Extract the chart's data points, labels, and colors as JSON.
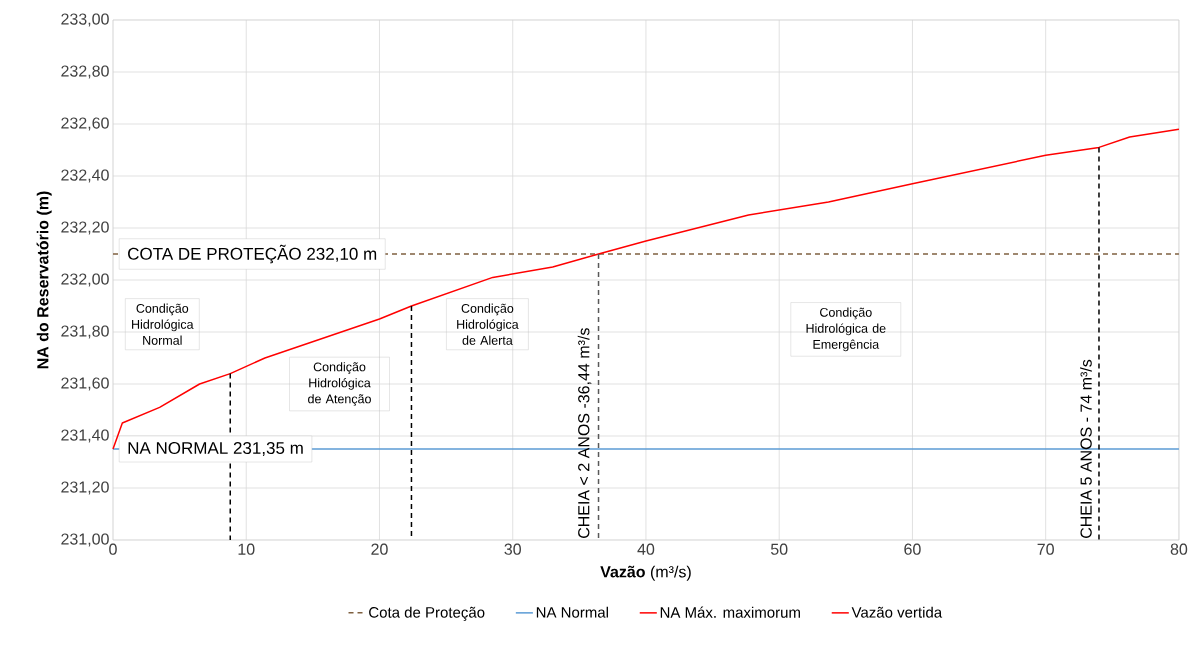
{
  "chart_data": {
    "type": "line",
    "xlabel": "**Vazão** (m³/s)",
    "ylabel": "NA do Reservatório (m)",
    "xlim": [
      0,
      80
    ],
    "xticks": [
      0,
      10,
      20,
      30,
      40,
      50,
      60,
      70,
      80
    ],
    "ylim": [
      231.0,
      233.0
    ],
    "yticks": [
      {
        "value": 231.0,
        "label": "231,00"
      },
      {
        "value": 231.2,
        "label": "231,20"
      },
      {
        "value": 231.4,
        "label": "231,40"
      },
      {
        "value": 231.6,
        "label": "231,60"
      },
      {
        "value": 231.8,
        "label": "231,80"
      },
      {
        "value": 232.0,
        "label": "232,00"
      },
      {
        "value": 232.2,
        "label": "232,20"
      },
      {
        "value": 232.4,
        "label": "232,40"
      },
      {
        "value": 232.6,
        "label": "232,60"
      },
      {
        "value": 232.8,
        "label": "232,80"
      },
      {
        "value": 233.0,
        "label": "233,00"
      }
    ],
    "grid": true,
    "legend": "bottom",
    "marker": "none",
    "series": [
      {
        "name": "Cota de Proteção",
        "color": "#7f6040",
        "line_style": "dashed",
        "x": [
          0,
          80
        ],
        "values": [
          232.1,
          232.1
        ]
      },
      {
        "name": "NA Normal",
        "color": "#5b9bd5",
        "x": [
          0,
          80
        ],
        "values": [
          231.35,
          231.35
        ]
      },
      {
        "name": "NA Máx. maximorum",
        "color": "#ff0000",
        "values": [
          null
        ]
      },
      {
        "name": "Vazão vertida",
        "color": "#ff0000",
        "x": [
          0,
          0.7,
          3.5,
          6.5,
          8.8,
          11.4,
          20,
          22.4,
          28.5,
          33,
          36.44,
          40,
          47.7,
          53.7,
          60,
          70,
          74,
          76.3,
          80
        ],
        "values": [
          231.35,
          231.45,
          231.51,
          231.6,
          231.64,
          231.7,
          231.85,
          231.9,
          232.01,
          232.05,
          232.1,
          232.15,
          232.25,
          232.3,
          232.37,
          232.48,
          232.51,
          232.55,
          232.58
        ]
      },
      {
        "color": "#000000",
        "line_style": "dashed",
        "x": [
          8.8,
          8.8
        ],
        "values": [
          231.64,
          231.0
        ]
      },
      {
        "color": "#000000",
        "line_style": "dashed",
        "x": [
          22.4,
          22.4
        ],
        "values": [
          231.9,
          231.0
        ]
      },
      {
        "color": "#595959",
        "line_style": "dashed",
        "x": [
          36.44,
          36.44
        ],
        "values": [
          232.1,
          231.0
        ]
      },
      {
        "color": "#000000",
        "line_style": "dashed",
        "x": [
          74,
          74
        ],
        "values": [
          232.51,
          231.0
        ]
      }
    ],
    "annotations": [
      {
        "text": "COTA DE PROTEÇÃO 232,10 m",
        "x": 0,
        "y": 232.1
      },
      {
        "text": "NA NORMAL 231,35 m",
        "x": 0,
        "y": 231.35
      },
      "Condição Hidrológica Normal",
      "Condição Hidrológica de Atenção",
      "Condição Hidrológica de Alerta",
      "Condição Hidrológica de Emergência",
      {
        "text": "CHEIA  < 2 ANOS -36,44 m³/s",
        "x": 36.44,
        "y": 231.0
      },
      {
        "text": "CHEIA 5 ANOS - 74 m³/s",
        "x": 74,
        "y": 231.0
      }
    ]
  }
}
